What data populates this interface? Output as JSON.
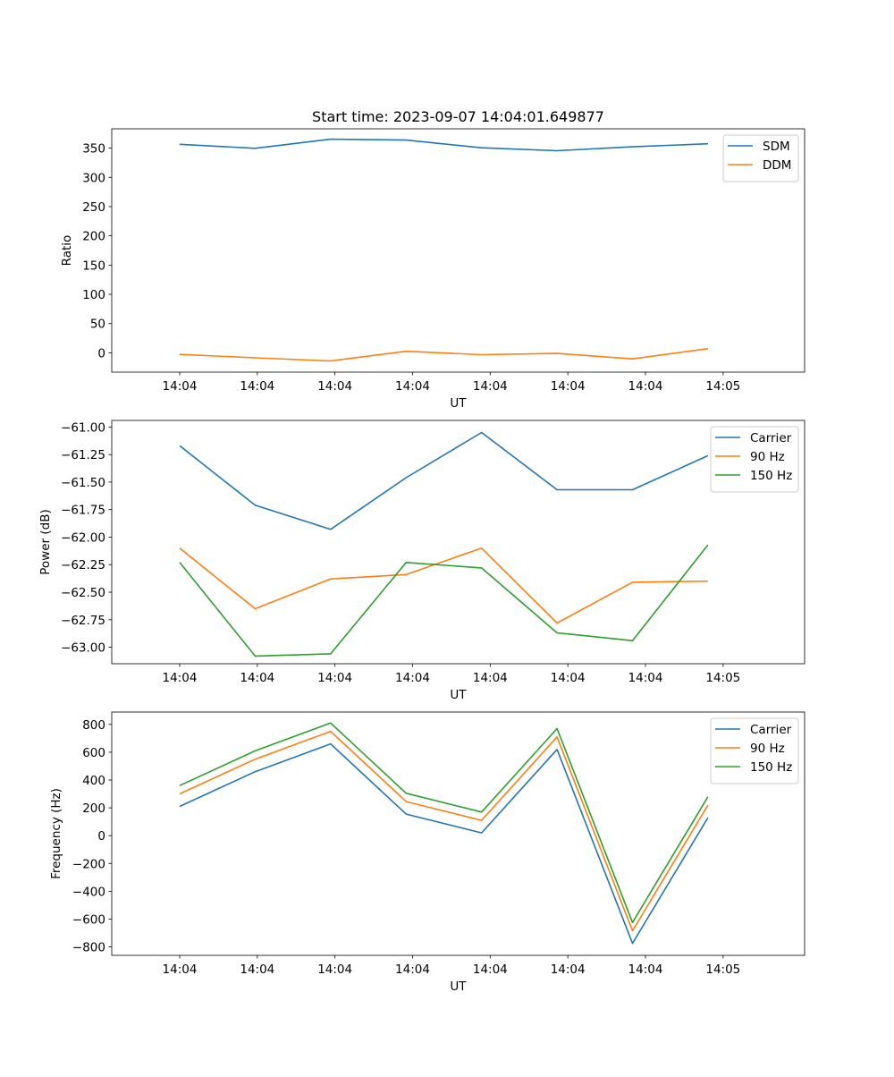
{
  "chart_data": [
    {
      "type": "line",
      "title": "Start time: 2023-09-07 14:04:01.649877",
      "xlabel": "UT",
      "ylabel": "Ratio",
      "x_tick_labels": [
        "14:04",
        "14:04",
        "14:04",
        "14:04",
        "14:04",
        "14:04",
        "14:04",
        "14:05"
      ],
      "xlim": [
        -0.125,
        1.15
      ],
      "x": [
        0,
        0.1389,
        0.2778,
        0.4167,
        0.5556,
        0.6944,
        0.8333,
        0.9722
      ],
      "ylim": [
        -33,
        383
      ],
      "yticks": [
        0,
        50,
        100,
        150,
        200,
        250,
        300,
        350
      ],
      "legend_location": "top-right",
      "series": [
        {
          "name": "SDM",
          "color": "#1f77b4",
          "values": [
            356.5,
            349.6,
            365.2,
            363.7,
            350.6,
            345.5,
            352.2,
            357.4
          ]
        },
        {
          "name": "DDM",
          "color": "#ff7f0e",
          "values": [
            -2.7,
            -8.6,
            -13.9,
            2.6,
            -3.2,
            -1.1,
            -10.4,
            7.1
          ]
        }
      ]
    },
    {
      "type": "line",
      "title": "",
      "xlabel": "UT",
      "ylabel": "Power (dB)",
      "x_tick_labels": [
        "14:04",
        "14:04",
        "14:04",
        "14:04",
        "14:04",
        "14:04",
        "14:04",
        "14:05"
      ],
      "xlim": [
        -0.125,
        1.15
      ],
      "x": [
        0,
        0.1389,
        0.2778,
        0.4167,
        0.5556,
        0.6944,
        0.8333,
        0.9722
      ],
      "ylim": [
        -63.15,
        -60.94
      ],
      "yticks": [
        -63.0,
        -62.75,
        -62.5,
        -62.25,
        -62.0,
        -61.75,
        -61.5,
        -61.25,
        -61.0
      ],
      "ytick_labels": [
        "−63.00",
        "−62.75",
        "−62.50",
        "−62.25",
        "−62.00",
        "−61.75",
        "−61.50",
        "−61.25",
        "−61.00"
      ],
      "legend_location": "top-right",
      "series": [
        {
          "name": "Carrier",
          "color": "#1f77b4",
          "values": [
            -61.17,
            -61.71,
            -61.93,
            -61.46,
            -61.05,
            -61.57,
            -61.57,
            -61.26
          ]
        },
        {
          "name": "90 Hz",
          "color": "#ff7f0e",
          "values": [
            -62.1,
            -62.65,
            -62.38,
            -62.34,
            -62.1,
            -62.78,
            -62.41,
            -62.4
          ]
        },
        {
          "name": "150 Hz",
          "color": "#2ca02c",
          "values": [
            -62.23,
            -63.08,
            -63.06,
            -62.23,
            -62.28,
            -62.87,
            -62.94,
            -62.07
          ]
        }
      ]
    },
    {
      "type": "line",
      "title": "",
      "xlabel": "UT",
      "ylabel": "Frequency (Hz)",
      "x_tick_labels": [
        "14:04",
        "14:04",
        "14:04",
        "14:04",
        "14:04",
        "14:04",
        "14:04",
        "14:05"
      ],
      "xlim": [
        -0.125,
        1.15
      ],
      "x": [
        0,
        0.1389,
        0.2778,
        0.4167,
        0.5556,
        0.6944,
        0.8333,
        0.9722
      ],
      "ylim": [
        -861,
        889
      ],
      "yticks": [
        -800,
        -600,
        -400,
        -200,
        0,
        200,
        400,
        600,
        800
      ],
      "ytick_labels": [
        "−800",
        "−600",
        "−400",
        "−200",
        "0",
        "200",
        "400",
        "600",
        "800"
      ],
      "legend_location": "top-right",
      "series": [
        {
          "name": "Carrier",
          "color": "#1f77b4",
          "values": [
            210,
            460,
            660,
            155,
            20,
            620,
            -775,
            130
          ]
        },
        {
          "name": "90 Hz",
          "color": "#ff7f0e",
          "values": [
            300,
            550,
            750,
            245,
            110,
            710,
            -685,
            220
          ]
        },
        {
          "name": "150 Hz",
          "color": "#2ca02c",
          "values": [
            360,
            610,
            810,
            305,
            170,
            770,
            -625,
            280
          ]
        }
      ]
    }
  ]
}
